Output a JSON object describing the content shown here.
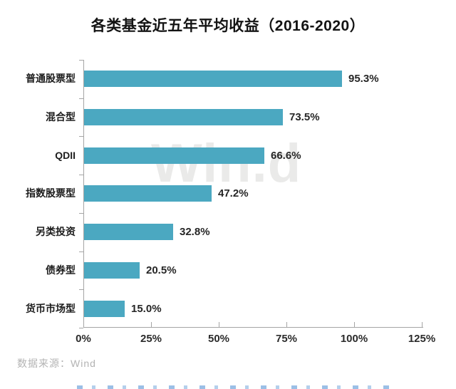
{
  "title": "各类基金近五年平均收益（2016-2020）",
  "source_note": "数据来源：Wind",
  "watermark": "Win.d",
  "colors": {
    "bar": "#4BA8C1",
    "axis": "#a5a5a5",
    "label_text": "#1d1d1d",
    "source_text": "#b3b3b3",
    "clipped_text_blue": "#5894d6"
  },
  "chart_data": {
    "type": "bar",
    "orientation": "horizontal",
    "title": "各类基金近五年平均收益（2016-2020）",
    "categories": [
      "普通股票型",
      "混合型",
      "QDII",
      "指数股票型",
      "另类投资",
      "债券型",
      "货币市场型"
    ],
    "values": [
      95.3,
      73.5,
      66.6,
      47.2,
      32.8,
      20.5,
      15.0
    ],
    "value_labels": [
      "95.3%",
      "73.5%",
      "66.6%",
      "47.2%",
      "32.8%",
      "20.5%",
      "15.0%"
    ],
    "xlabel": "",
    "ylabel": "",
    "xlim": [
      0,
      125
    ],
    "x_tick_values": [
      0,
      25,
      50,
      75,
      100,
      125
    ],
    "x_tick_labels": [
      "0%",
      "25%",
      "50%",
      "75%",
      "100%",
      "125%"
    ],
    "grid": false,
    "legend": false
  }
}
